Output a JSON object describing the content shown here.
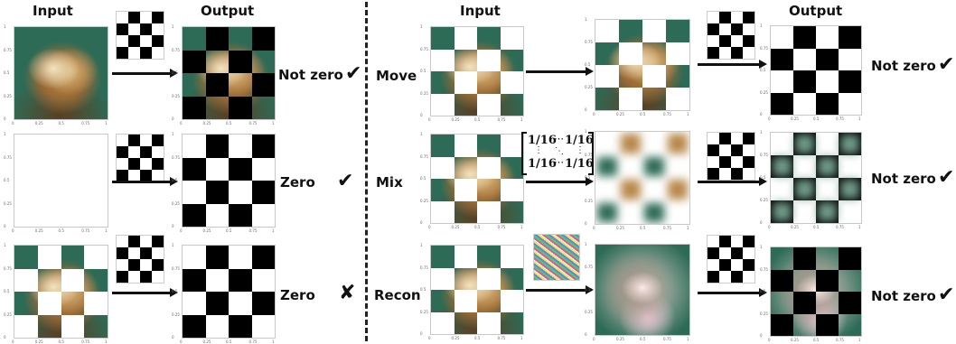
{
  "left_header_input": "Input",
  "left_header_output": "Output",
  "right_header_input": "Input",
  "right_header_output": "Output",
  "left_rows": [
    {
      "result": "Not zero",
      "mark": "✔"
    },
    {
      "result": "Zero",
      "mark": "✔"
    },
    {
      "result": "Zero",
      "mark": "✘"
    }
  ],
  "right_rows": [
    {
      "name": "Move",
      "result": "Not zero",
      "mark": "✔"
    },
    {
      "name": "Mix",
      "result": "Not zero",
      "mark": "✔"
    },
    {
      "name": "Recon",
      "result": "Not zero",
      "mark": "✔"
    }
  ],
  "axis_ticks_x": [
    "0",
    "0.25",
    "0.5",
    "0.75",
    "1"
  ],
  "axis_ticks_y": [
    "1",
    "0.75",
    "0.5",
    "0.25",
    "0"
  ],
  "mix_matrix": {
    "top_left": "1/16",
    "top_right": "1/16",
    "bottom_left": "1/16",
    "bottom_right": "1/16",
    "h_dots": "⋯",
    "v_dots": "⋮",
    "d_dots": "⋱"
  },
  "colors": {
    "ink": "#111111",
    "panel_border": "#c8c8c8",
    "cat_bg": "#2e6b56"
  }
}
